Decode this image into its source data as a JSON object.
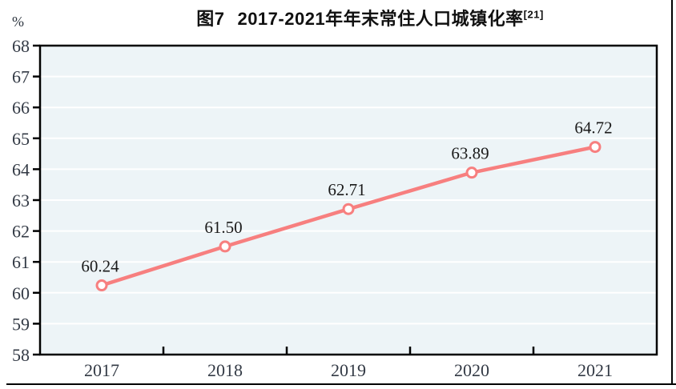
{
  "figure": {
    "title": {
      "figure_label": "图7",
      "text": "2017-2021年年末常住人口城镇化率",
      "superscript": "[21]"
    }
  },
  "chart_data": {
    "type": "line",
    "title": "图7 2017-2021年年末常住人口城镇化率[21]",
    "xlabel": "",
    "ylabel": "%",
    "categories": [
      "2017",
      "2018",
      "2019",
      "2020",
      "2021"
    ],
    "series": [
      {
        "name": "年末常住人口城镇化率",
        "values": [
          60.24,
          61.5,
          62.71,
          63.89,
          64.72
        ]
      }
    ],
    "value_labels": [
      "60.24",
      "61.50",
      "62.71",
      "63.89",
      "64.72"
    ],
    "ylim": [
      58,
      68
    ],
    "ytick_step": 1,
    "grid": "horizontal-white-lines",
    "legend": "none",
    "colors": {
      "line": "#f77f7f",
      "marker_fill": "#ffffff",
      "plot_background": "#edf4f7",
      "gridline": "#ffffff",
      "plot_border": "#000000",
      "tick": "#000000",
      "axis_text": "#333a45",
      "data_label_text": "#1a1a1a",
      "frame_line": "#000000"
    }
  }
}
